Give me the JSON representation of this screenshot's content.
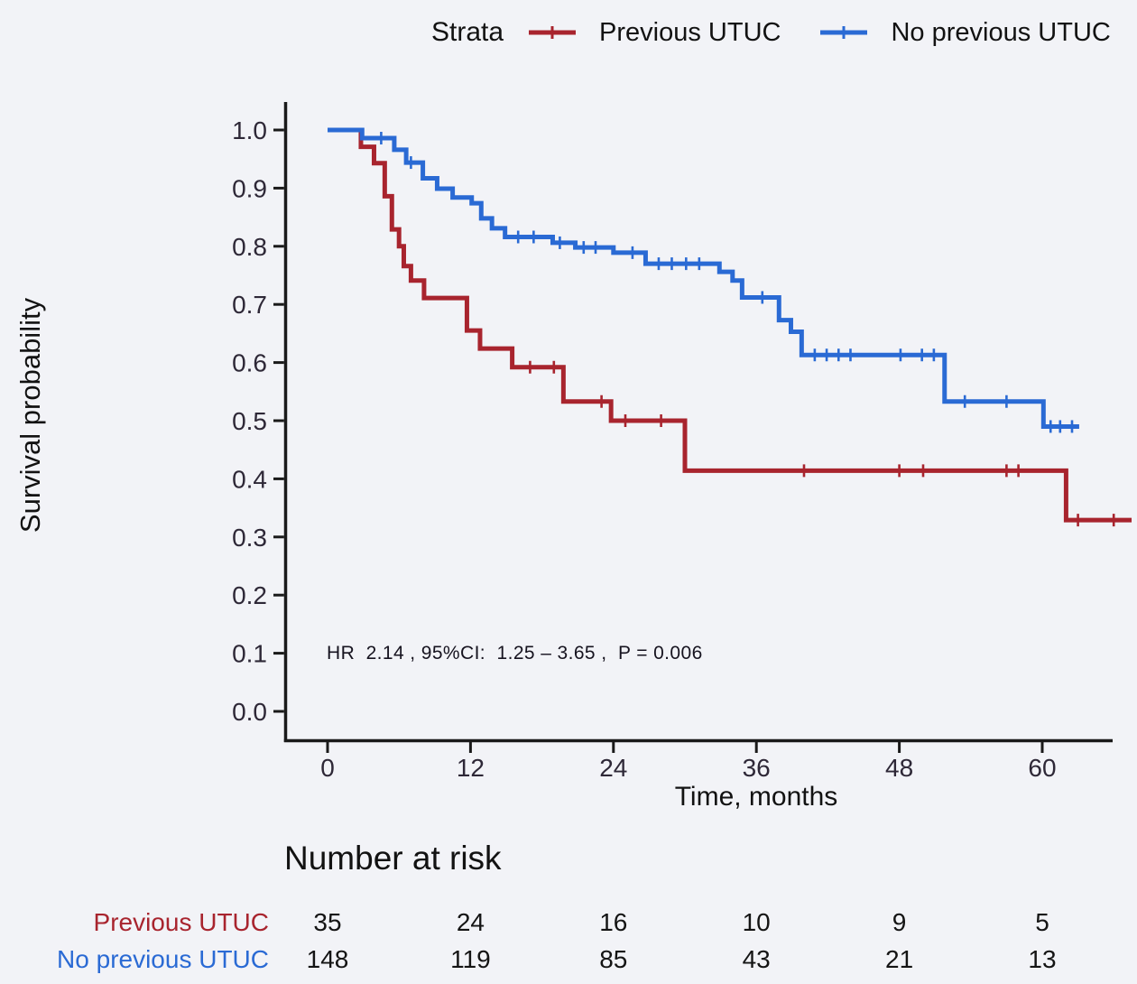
{
  "figure": {
    "background": "#f2f3f7",
    "legend": {
      "title": "Strata",
      "entries": [
        {
          "label": "Previous UTUC",
          "color": "#a8242e"
        },
        {
          "label": "No previous UTUC",
          "color": "#2a6ad4"
        }
      ]
    },
    "y_axis_title": "Survival probability",
    "x_axis_title": "Time, months",
    "annotation": "HR  2.14 , 95%CI:  1.25 – 3.65 ,  P = 0.006",
    "risk_section_title": "Number at risk"
  },
  "chart_data": {
    "type": "line",
    "subtype": "kaplan_meier_step",
    "title": "",
    "xlabel": "Time, months",
    "ylabel": "Survival probability",
    "legend_title": "Strata",
    "legend_position": "top",
    "grid": false,
    "xlim": [
      0,
      67.5
    ],
    "ylim": [
      0.0,
      1.0
    ],
    "xticks": [
      0,
      12,
      24,
      36,
      48,
      60
    ],
    "yticks": [
      0.0,
      0.1,
      0.2,
      0.3,
      0.4,
      0.5,
      0.6,
      0.7,
      0.8,
      0.9,
      1.0
    ],
    "annotation": "HR 2.14 , 95%CI: 1.25 – 3.65 , P = 0.006",
    "hr_stats": {
      "hr": 2.14,
      "ci_low": 1.25,
      "ci_high": 3.65,
      "p_value": 0.006
    },
    "axis_color": "#1a1a1a",
    "tick_label_color": "#2e2837",
    "series": [
      {
        "name": "Previous UTUC",
        "color": "#a8242e",
        "steps": [
          [
            0,
            1.0
          ],
          [
            2.8,
            0.971
          ],
          [
            3.9,
            0.943
          ],
          [
            4.8,
            0.886
          ],
          [
            5.4,
            0.829
          ],
          [
            6.0,
            0.8
          ],
          [
            6.4,
            0.766
          ],
          [
            7.0,
            0.741
          ],
          [
            8.1,
            0.711
          ],
          [
            11.7,
            0.655
          ],
          [
            12.8,
            0.624
          ],
          [
            15.5,
            0.592
          ],
          [
            19.8,
            0.533
          ],
          [
            23.8,
            0.5
          ],
          [
            30.0,
            0.414
          ],
          [
            62.0,
            0.329
          ]
        ],
        "end_time": 67.5,
        "censor_times": [
          17,
          19,
          23,
          25,
          28,
          40,
          48,
          50,
          57,
          58,
          63,
          66
        ]
      },
      {
        "name": "No previous UTUC",
        "color": "#2a6ad4",
        "steps": [
          [
            0,
            1.0
          ],
          [
            2.9,
            0.986
          ],
          [
            5.6,
            0.966
          ],
          [
            6.6,
            0.944
          ],
          [
            8.0,
            0.917
          ],
          [
            9.2,
            0.899
          ],
          [
            10.5,
            0.884
          ],
          [
            12.1,
            0.874
          ],
          [
            12.9,
            0.848
          ],
          [
            13.8,
            0.831
          ],
          [
            14.9,
            0.816
          ],
          [
            18.9,
            0.806
          ],
          [
            20.8,
            0.798
          ],
          [
            24.0,
            0.789
          ],
          [
            26.7,
            0.77
          ],
          [
            32.9,
            0.756
          ],
          [
            34.0,
            0.741
          ],
          [
            34.8,
            0.712
          ],
          [
            37.9,
            0.673
          ],
          [
            38.9,
            0.653
          ],
          [
            39.8,
            0.613
          ],
          [
            51.8,
            0.533
          ],
          [
            60.1,
            0.49
          ]
        ],
        "end_time": 63.1,
        "censor_times": [
          4.5,
          7,
          16,
          17.3,
          19.5,
          21.5,
          22.5,
          25.6,
          27.8,
          28.9,
          30.1,
          31.2,
          36.5,
          40.9,
          41.9,
          42.9,
          43.9,
          48.1,
          49.9,
          50.9,
          53.5,
          57,
          60.7,
          61.5,
          62.5
        ]
      }
    ],
    "risk_table": {
      "title": "Number at risk",
      "times": [
        0,
        12,
        24,
        36,
        48,
        60
      ],
      "rows": [
        {
          "name": "Previous UTUC",
          "color": "#a8242e",
          "values": [
            35,
            24,
            16,
            10,
            9,
            5
          ]
        },
        {
          "name": "No previous UTUC",
          "color": "#2a6ad4",
          "values": [
            148,
            119,
            85,
            43,
            21,
            13
          ]
        }
      ]
    }
  }
}
